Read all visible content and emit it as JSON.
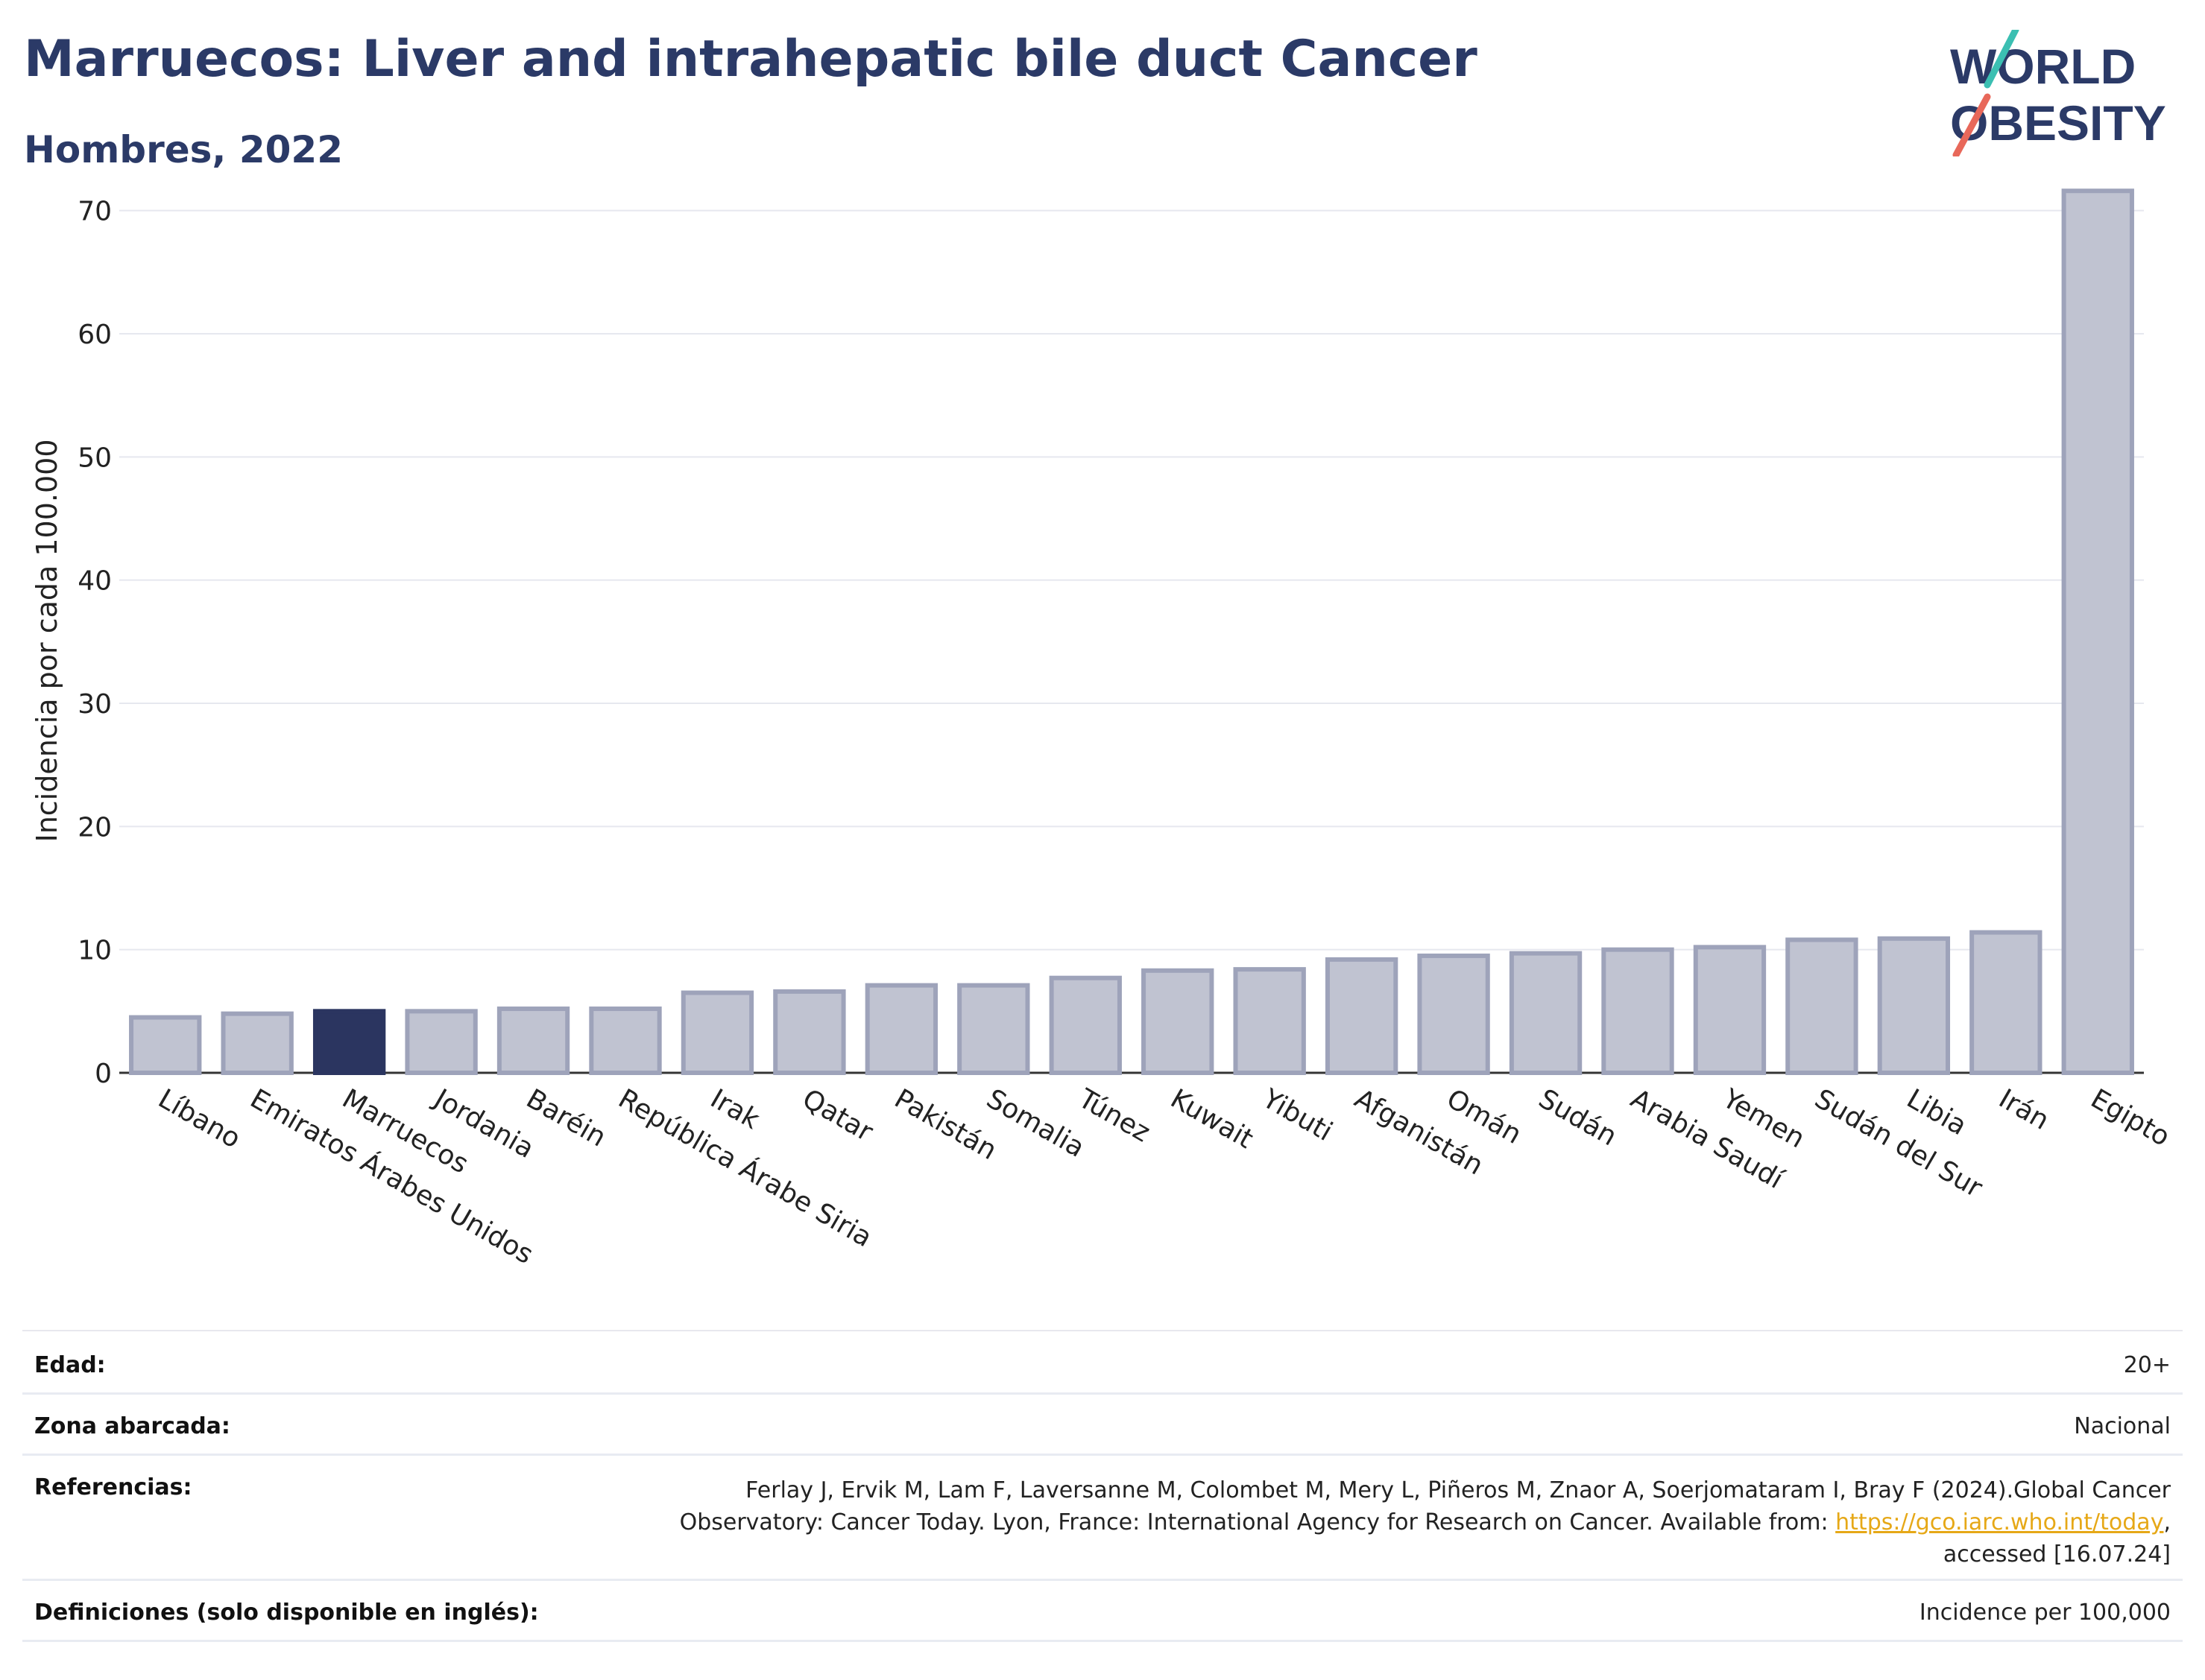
{
  "header": {
    "title": "Marruecos: Liver and intrahepatic bile duct Cancer",
    "subtitle": "Hombres, 2022",
    "logo_line1": "WORLD",
    "logo_line2": "OBESITY"
  },
  "chart_data": {
    "type": "bar",
    "title": "Marruecos: Liver and intrahepatic bile duct Cancer",
    "subtitle": "Hombres, 2022",
    "ylabel": "Incidencia por cada 100.000",
    "xlabel": "",
    "ylim": [
      0,
      75
    ],
    "yticks": [
      0,
      10,
      20,
      30,
      40,
      50,
      60,
      70
    ],
    "grid": true,
    "highlight": "Marruecos",
    "colors": {
      "default": "#c0c3d1",
      "default_stroke": "#9ea3ba",
      "highlight": "#2b3560"
    },
    "categories": [
      "Líbano",
      "Emiratos Árabes Unidos",
      "Marruecos",
      "Jordania",
      "Baréin",
      "República Árabe Siria",
      "Irak",
      "Qatar",
      "Pakistán",
      "Somalia",
      "Túnez",
      "Kuwait",
      "Yibuti",
      "Afganistán",
      "Omán",
      "Sudán",
      "Arabia Saudí",
      "Yemen",
      "Sudán del Sur",
      "Libia",
      "Irán",
      "Egipto"
    ],
    "values": [
      4.5,
      4.8,
      5.0,
      5.0,
      5.2,
      5.2,
      6.5,
      6.6,
      7.1,
      7.1,
      7.7,
      8.3,
      8.4,
      9.2,
      9.5,
      9.7,
      10.0,
      10.2,
      10.8,
      10.9,
      11.4,
      71.6
    ]
  },
  "meta": {
    "age_label": "Edad:",
    "age_value": "20+",
    "zone_label": "Zona abarcada:",
    "zone_value": "Nacional",
    "refs_label": "Referencias:",
    "refs_line1": "Ferlay J, Ervik M, Lam F, Laversanne M, Colombet M, Mery L, Piñeros M, Znaor A, Soerjomataram I, Bray F (2024).Global Cancer",
    "refs_line2": "Observatory: Cancer Today. Lyon, France: International Agency for Research on Cancer. Available from: ",
    "refs_link": "https://gco.iarc.who.int/today",
    "refs_line2_end": ",",
    "refs_line3": "accessed [16.07.24]",
    "defs_label": "Definiciones (solo disponible en inglés):",
    "defs_value": "Incidence per 100,000"
  }
}
